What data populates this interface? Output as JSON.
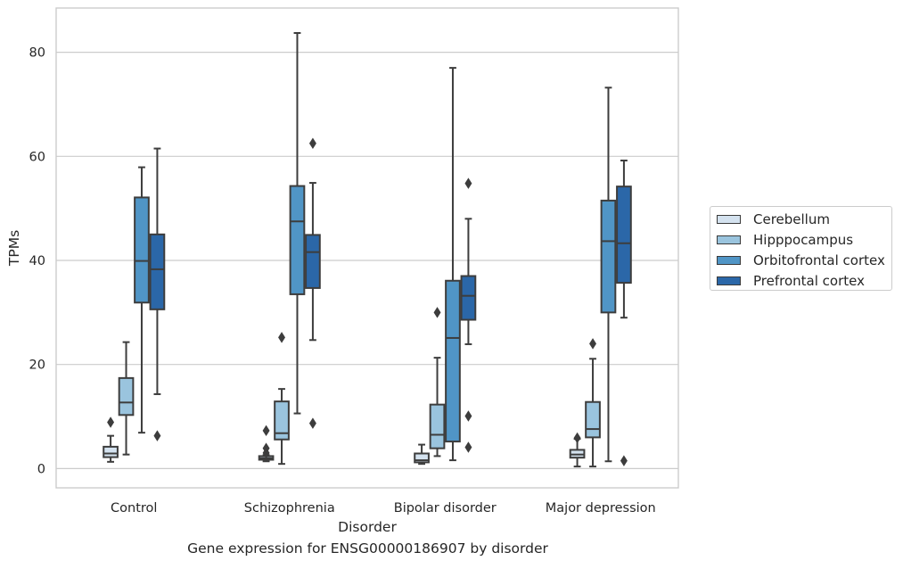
{
  "caption": "Gene expression for ENSG00000186907 by disorder",
  "chart_data": {
    "type": "box",
    "xlabel": "Disorder",
    "ylabel": "TPMs",
    "categories": [
      "Control",
      "Schizophrenia",
      "Bipolar disorder",
      "Major depression"
    ],
    "ylim": [
      -3.7,
      88.5
    ],
    "yticks": [
      0,
      20,
      40,
      60,
      80
    ],
    "grid": "horizontal",
    "legend_position": "right",
    "series": [
      {
        "name": "Cerebellum",
        "color": "#d4e2ef",
        "boxes": [
          {
            "whislo": 1.3,
            "q1": 2.2,
            "med": 2.9,
            "q3": 4.2,
            "whishi": 6.3,
            "fliers": [
              8.9
            ]
          },
          {
            "whislo": 1.4,
            "q1": 1.7,
            "med": 2.0,
            "q3": 2.4,
            "whishi": 2.6,
            "fliers": [
              3.0,
              3.9,
              7.3
            ]
          },
          {
            "whislo": 0.9,
            "q1": 1.2,
            "med": 1.6,
            "q3": 2.9,
            "whishi": 4.6,
            "fliers": []
          },
          {
            "whislo": 0.4,
            "q1": 2.1,
            "med": 2.7,
            "q3": 3.6,
            "whishi": 5.7,
            "fliers": [
              5.9
            ]
          }
        ]
      },
      {
        "name": "Hipppocampus",
        "color": "#9ac4de",
        "boxes": [
          {
            "whislo": 2.7,
            "q1": 10.3,
            "med": 12.7,
            "q3": 17.4,
            "whishi": 24.3,
            "fliers": []
          },
          {
            "whislo": 0.9,
            "q1": 5.6,
            "med": 6.8,
            "q3": 12.9,
            "whishi": 15.3,
            "fliers": [
              25.2
            ]
          },
          {
            "whislo": 2.4,
            "q1": 3.9,
            "med": 6.5,
            "q3": 12.3,
            "whishi": 21.3,
            "fliers": [
              30.0
            ]
          },
          {
            "whislo": 0.4,
            "q1": 6.0,
            "med": 7.6,
            "q3": 12.8,
            "whishi": 21.1,
            "fliers": [
              24.0
            ]
          }
        ]
      },
      {
        "name": "Orbitofrontal cortex",
        "color": "#5095c6",
        "boxes": [
          {
            "whislo": 6.9,
            "q1": 31.9,
            "med": 39.9,
            "q3": 52.1,
            "whishi": 57.9,
            "fliers": []
          },
          {
            "whislo": 10.6,
            "q1": 33.5,
            "med": 47.5,
            "q3": 54.3,
            "whishi": 83.7,
            "fliers": []
          },
          {
            "whislo": 1.6,
            "q1": 5.2,
            "med": 25.1,
            "q3": 36.1,
            "whishi": 77.0,
            "fliers": []
          },
          {
            "whislo": 1.4,
            "q1": 30.0,
            "med": 43.7,
            "q3": 51.5,
            "whishi": 73.2,
            "fliers": []
          }
        ]
      },
      {
        "name": "Prefrontal cortex",
        "color": "#2b67a8",
        "boxes": [
          {
            "whislo": 14.3,
            "q1": 30.6,
            "med": 38.3,
            "q3": 45.0,
            "whishi": 61.5,
            "fliers": [
              6.3
            ]
          },
          {
            "whislo": 24.7,
            "q1": 34.7,
            "med": 41.6,
            "q3": 44.9,
            "whishi": 54.9,
            "fliers": [
              8.7,
              62.5
            ]
          },
          {
            "whislo": 23.9,
            "q1": 28.6,
            "med": 33.2,
            "q3": 37.0,
            "whishi": 48.0,
            "fliers": [
              4.1,
              10.1,
              54.8
            ]
          },
          {
            "whislo": 29.0,
            "q1": 35.7,
            "med": 43.3,
            "q3": 54.2,
            "whishi": 59.2,
            "fliers": [
              1.5
            ]
          }
        ]
      }
    ]
  }
}
